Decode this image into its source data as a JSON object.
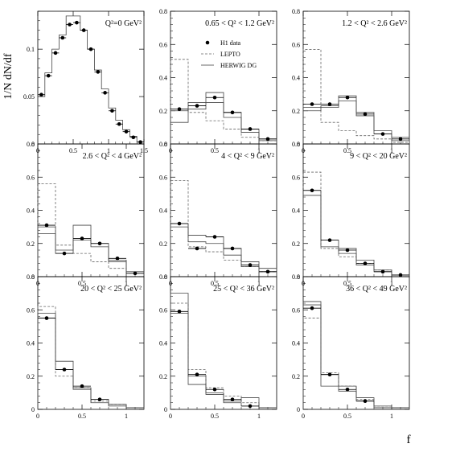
{
  "figure": {
    "ylabel": "1/N dN/df",
    "xlabel": "f",
    "legend": {
      "data": "H1 data",
      "lepto": "LEPTO",
      "herwig": "HERWIG DG"
    }
  },
  "chart_data": [
    {
      "type": "histogram",
      "label": "Q²=0 GeV²",
      "xlim": [
        0,
        1.5
      ],
      "ylim": [
        0,
        0.14
      ],
      "xticks": [
        "0",
        "0.5",
        "1",
        "1.5"
      ],
      "yticks": [
        "0",
        "0.05",
        "0.1"
      ],
      "bin_edges": [
        0,
        0.1,
        0.2,
        0.3,
        0.4,
        0.5,
        0.6,
        0.7,
        0.8,
        0.9,
        1.0,
        1.1,
        1.2,
        1.3,
        1.4,
        1.5
      ],
      "series": [
        {
          "name": "HERWIG DG",
          "values": [
            0.05,
            0.075,
            0.1,
            0.115,
            0.135,
            0.135,
            0.12,
            0.1,
            0.078,
            0.058,
            0.038,
            0.025,
            0.015,
            0.008,
            0.002
          ]
        }
      ],
      "points": {
        "name": "H1 data",
        "x": [
          0.05,
          0.15,
          0.25,
          0.35,
          0.45,
          0.55,
          0.65,
          0.75,
          0.85,
          0.95,
          1.05,
          1.15,
          1.25,
          1.35,
          1.45
        ],
        "y": [
          0.052,
          0.072,
          0.096,
          0.112,
          0.126,
          0.128,
          0.12,
          0.1,
          0.076,
          0.054,
          0.035,
          0.021,
          0.013,
          0.007,
          0.002
        ]
      }
    },
    {
      "type": "histogram",
      "label": "0.65 < Q² < 1.2 GeV²",
      "xlim": [
        0,
        1.2
      ],
      "ylim": [
        0,
        0.8
      ],
      "xticks": [
        "0",
        "0.5",
        "1"
      ],
      "yticks": [
        "0",
        "0.2",
        "0.4",
        "0.6",
        "0.8"
      ],
      "bin_edges": [
        0,
        0.2,
        0.4,
        0.6,
        0.8,
        1.0,
        1.2
      ],
      "series": [
        {
          "name": "LEPTO",
          "values": [
            0.51,
            0.19,
            0.14,
            0.09,
            0.04,
            0.02
          ]
        },
        {
          "name": "HERWIG DG",
          "values": [
            0.13,
            0.25,
            0.31,
            0.19,
            0.09,
            0.03
          ]
        },
        {
          "name": "HERWIG DG",
          "values": [
            0.2,
            0.21,
            0.25,
            0.16,
            0.07,
            0.02
          ]
        }
      ],
      "points": {
        "name": "H1 data",
        "x": [
          0.1,
          0.3,
          0.5,
          0.7,
          0.9,
          1.1
        ],
        "y": [
          0.21,
          0.23,
          0.28,
          0.19,
          0.09,
          0.03
        ]
      }
    },
    {
      "type": "histogram",
      "label": "1.2 < Q² < 2.6 GeV²",
      "xlim": [
        0,
        1.2
      ],
      "ylim": [
        0,
        0.8
      ],
      "xticks": [
        "0",
        "0.5",
        "1"
      ],
      "yticks": [
        "0",
        "0.2",
        "0.4",
        "0.6",
        "0.8"
      ],
      "bin_edges": [
        0,
        0.2,
        0.4,
        0.6,
        0.8,
        1.0,
        1.2
      ],
      "series": [
        {
          "name": "LEPTO",
          "values": [
            0.57,
            0.13,
            0.08,
            0.05,
            0.03,
            0.01
          ]
        },
        {
          "name": "HERWIG DG",
          "values": [
            0.2,
            0.23,
            0.29,
            0.19,
            0.08,
            0.04
          ]
        },
        {
          "name": "HERWIG DG",
          "values": [
            0.22,
            0.22,
            0.26,
            0.17,
            0.06,
            0.02
          ]
        }
      ],
      "points": {
        "name": "H1 data",
        "x": [
          0.1,
          0.3,
          0.5,
          0.7,
          0.9,
          1.1
        ],
        "y": [
          0.24,
          0.24,
          0.28,
          0.18,
          0.06,
          0.03
        ]
      }
    },
    {
      "type": "histogram",
      "label": "2.6 < Q² < 4 GeV²",
      "xlim": [
        0,
        1.2
      ],
      "ylim": [
        0,
        0.8
      ],
      "xticks": [
        "0",
        "0.5",
        "1"
      ],
      "yticks": [
        "0",
        "0.2",
        "0.4",
        "0.6",
        "0.8"
      ],
      "bin_edges": [
        0,
        0.2,
        0.4,
        0.6,
        0.8,
        1.0,
        1.2
      ],
      "series": [
        {
          "name": "LEPTO",
          "values": [
            0.56,
            0.19,
            0.14,
            0.09,
            0.05,
            0.02
          ]
        },
        {
          "name": "HERWIG DG",
          "values": [
            0.26,
            0.14,
            0.31,
            0.2,
            0.1,
            0.03
          ]
        },
        {
          "name": "HERWIG DG",
          "values": [
            0.3,
            0.16,
            0.22,
            0.18,
            0.09,
            0.02
          ]
        }
      ],
      "points": {
        "name": "H1 data",
        "x": [
          0.1,
          0.3,
          0.5,
          0.7,
          0.9,
          1.1
        ],
        "y": [
          0.31,
          0.14,
          0.23,
          0.2,
          0.11,
          0.02
        ]
      }
    },
    {
      "type": "histogram",
      "label": "4 < Q² < 9 GeV²",
      "xlim": [
        0,
        1.2
      ],
      "ylim": [
        0,
        0.8
      ],
      "xticks": [
        "0",
        "0.5",
        "1"
      ],
      "yticks": [
        "0",
        "0.2",
        "0.4",
        "0.6",
        "0.8"
      ],
      "bin_edges": [
        0,
        0.2,
        0.4,
        0.6,
        0.8,
        1.0,
        1.2
      ],
      "series": [
        {
          "name": "LEPTO",
          "values": [
            0.58,
            0.18,
            0.15,
            0.1,
            0.06,
            0.03
          ]
        },
        {
          "name": "HERWIG DG",
          "values": [
            0.32,
            0.25,
            0.24,
            0.17,
            0.09,
            0.05
          ]
        },
        {
          "name": "HERWIG DG",
          "values": [
            0.3,
            0.21,
            0.2,
            0.13,
            0.06,
            0.03
          ]
        }
      ],
      "points": {
        "name": "H1 data",
        "x": [
          0.1,
          0.3,
          0.5,
          0.7,
          0.9,
          1.1
        ],
        "y": [
          0.32,
          0.17,
          0.24,
          0.17,
          0.07,
          0.03
        ]
      }
    },
    {
      "type": "histogram",
      "label": "9 < Q² < 20 GeV²",
      "xlim": [
        0,
        1.2
      ],
      "ylim": [
        0,
        0.8
      ],
      "xticks": [
        "0",
        "0.5",
        "1"
      ],
      "yticks": [
        "0",
        "0.2",
        "0.4",
        "0.6",
        "0.8"
      ],
      "bin_edges": [
        0,
        0.2,
        0.4,
        0.6,
        0.8,
        1.0,
        1.2
      ],
      "series": [
        {
          "name": "LEPTO",
          "values": [
            0.63,
            0.17,
            0.12,
            0.08,
            0.04,
            0.01
          ]
        },
        {
          "name": "HERWIG DG",
          "values": [
            0.52,
            0.22,
            0.17,
            0.1,
            0.04,
            0.01
          ]
        },
        {
          "name": "HERWIG DG",
          "values": [
            0.49,
            0.18,
            0.14,
            0.07,
            0.03,
            0.01
          ]
        }
      ],
      "points": {
        "name": "H1 data",
        "x": [
          0.1,
          0.3,
          0.5,
          0.7,
          0.9,
          1.1
        ],
        "y": [
          0.52,
          0.22,
          0.16,
          0.08,
          0.03,
          0.01
        ]
      }
    },
    {
      "type": "histogram",
      "label": "20 < Q² < 25 GeV²",
      "xlim": [
        0,
        1.2
      ],
      "ylim": [
        0,
        0.8
      ],
      "xticks": [
        "0",
        "0.5",
        "1"
      ],
      "yticks": [
        "0",
        "0.2",
        "0.4",
        "0.6",
        "0.8"
      ],
      "bin_edges": [
        0,
        0.2,
        0.4,
        0.6,
        0.8,
        1.0,
        1.2
      ],
      "series": [
        {
          "name": "LEPTO",
          "values": [
            0.62,
            0.2,
            0.13,
            0.05,
            0.03,
            0.01
          ]
        },
        {
          "name": "HERWIG DG",
          "values": [
            0.58,
            0.29,
            0.13,
            0.06,
            0.03,
            0.01
          ]
        },
        {
          "name": "HERWIG DG",
          "values": [
            0.55,
            0.24,
            0.12,
            0.04,
            0.02,
            0.01
          ]
        }
      ],
      "points": {
        "name": "H1 data",
        "x": [
          0.1,
          0.3,
          0.5,
          0.7
        ],
        "y": [
          0.55,
          0.24,
          0.14,
          0.06
        ]
      }
    },
    {
      "type": "histogram",
      "label": "25 < Q² < 36 GeV²",
      "xlim": [
        0,
        1.2
      ],
      "ylim": [
        0,
        0.8
      ],
      "xticks": [
        "0",
        "0.5",
        "1"
      ],
      "yticks": [
        "0",
        "0.2",
        "0.4",
        "0.6",
        "0.8"
      ],
      "bin_edges": [
        0,
        0.2,
        0.4,
        0.6,
        0.8,
        1.0,
        1.2
      ],
      "series": [
        {
          "name": "LEPTO",
          "values": [
            0.64,
            0.24,
            0.13,
            0.08,
            0.04,
            0.01
          ]
        },
        {
          "name": "HERWIG DG",
          "values": [
            0.7,
            0.15,
            0.09,
            0.05,
            0.07,
            0.01
          ]
        },
        {
          "name": "HERWIG DG",
          "values": [
            0.58,
            0.2,
            0.1,
            0.04,
            0.02,
            0.01
          ]
        }
      ],
      "points": {
        "name": "H1 data",
        "x": [
          0.1,
          0.3,
          0.5,
          0.7,
          0.9
        ],
        "y": [
          0.59,
          0.21,
          0.12,
          0.06,
          0.02
        ]
      }
    },
    {
      "type": "histogram",
      "label": "36 < Q² < 49 GeV²",
      "xlim": [
        0,
        1.2
      ],
      "ylim": [
        0,
        0.8
      ],
      "xticks": [
        "0",
        "0.5",
        "1"
      ],
      "yticks": [
        "0",
        "0.2",
        "0.4",
        "0.6",
        "0.8"
      ],
      "bin_edges": [
        0,
        0.2,
        0.4,
        0.6,
        0.8,
        1.0,
        1.2
      ],
      "series": [
        {
          "name": "LEPTO",
          "values": [
            0.55,
            0.22,
            0.14,
            0.06,
            0.02,
            0.01
          ]
        },
        {
          "name": "HERWIG DG",
          "values": [
            0.65,
            0.14,
            0.14,
            0.07,
            0.01,
            0.01
          ]
        },
        {
          "name": "HERWIG DG",
          "values": [
            0.63,
            0.21,
            0.11,
            0.05,
            0.02,
            0.01
          ]
        }
      ],
      "points": {
        "name": "H1 data",
        "x": [
          0.1,
          0.3,
          0.5,
          0.7
        ],
        "y": [
          0.61,
          0.21,
          0.12,
          0.05
        ]
      }
    }
  ]
}
